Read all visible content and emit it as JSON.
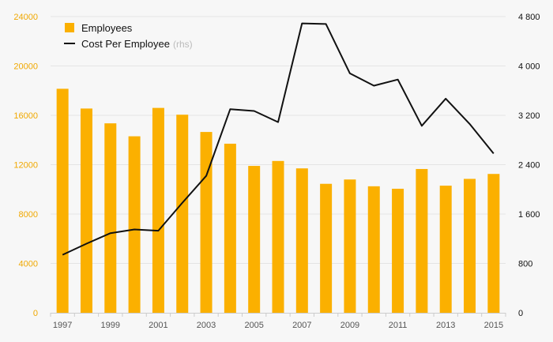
{
  "chart_data": {
    "type": "bar",
    "categories": [
      "1997",
      "1998",
      "1999",
      "2000",
      "2001",
      "2002",
      "2003",
      "2004",
      "2005",
      "2006",
      "2007",
      "2008",
      "2009",
      "2010",
      "2011",
      "2012",
      "2013",
      "2014",
      "2015"
    ],
    "series": [
      {
        "name": "Employees",
        "type": "bar",
        "axis": "left",
        "color": "#fbb000",
        "values": [
          18150,
          16550,
          15350,
          14300,
          16600,
          16050,
          14650,
          13700,
          11900,
          12300,
          11700,
          10450,
          10800,
          10250,
          10050,
          11650,
          10300,
          10850,
          11250
        ]
      },
      {
        "name": "Cost Per Employee",
        "name_note": "(rhs)",
        "type": "line",
        "axis": "right",
        "color": "#111111",
        "values": [
          940,
          1120,
          1290,
          1350,
          1330,
          1780,
          2220,
          3300,
          3270,
          3090,
          4690,
          4680,
          3880,
          3680,
          3780,
          3030,
          3470,
          3060,
          2580
        ]
      }
    ],
    "x_tick_labels": [
      "1997",
      "1999",
      "2001",
      "2003",
      "2005",
      "2007",
      "2009",
      "2011",
      "2013",
      "2015"
    ],
    "y_left": {
      "ylim": [
        0,
        24000
      ],
      "ticks": [
        0,
        4000,
        8000,
        12000,
        16000,
        20000,
        24000
      ],
      "tick_labels": [
        "0",
        "4000",
        "8000",
        "12000",
        "16000",
        "20000",
        "24000"
      ],
      "color": "#f0a800"
    },
    "y_right": {
      "ylim": [
        0,
        4800
      ],
      "ticks": [
        0,
        800,
        1600,
        2400,
        3200,
        4000,
        4800
      ],
      "tick_labels": [
        "0",
        "800",
        "1 600",
        "2 400",
        "3 200",
        "4 000",
        "4 800"
      ],
      "color": "#111111"
    },
    "grid": true,
    "legend_position": "top-left",
    "title": "",
    "xlabel": "",
    "ylabel": ""
  }
}
